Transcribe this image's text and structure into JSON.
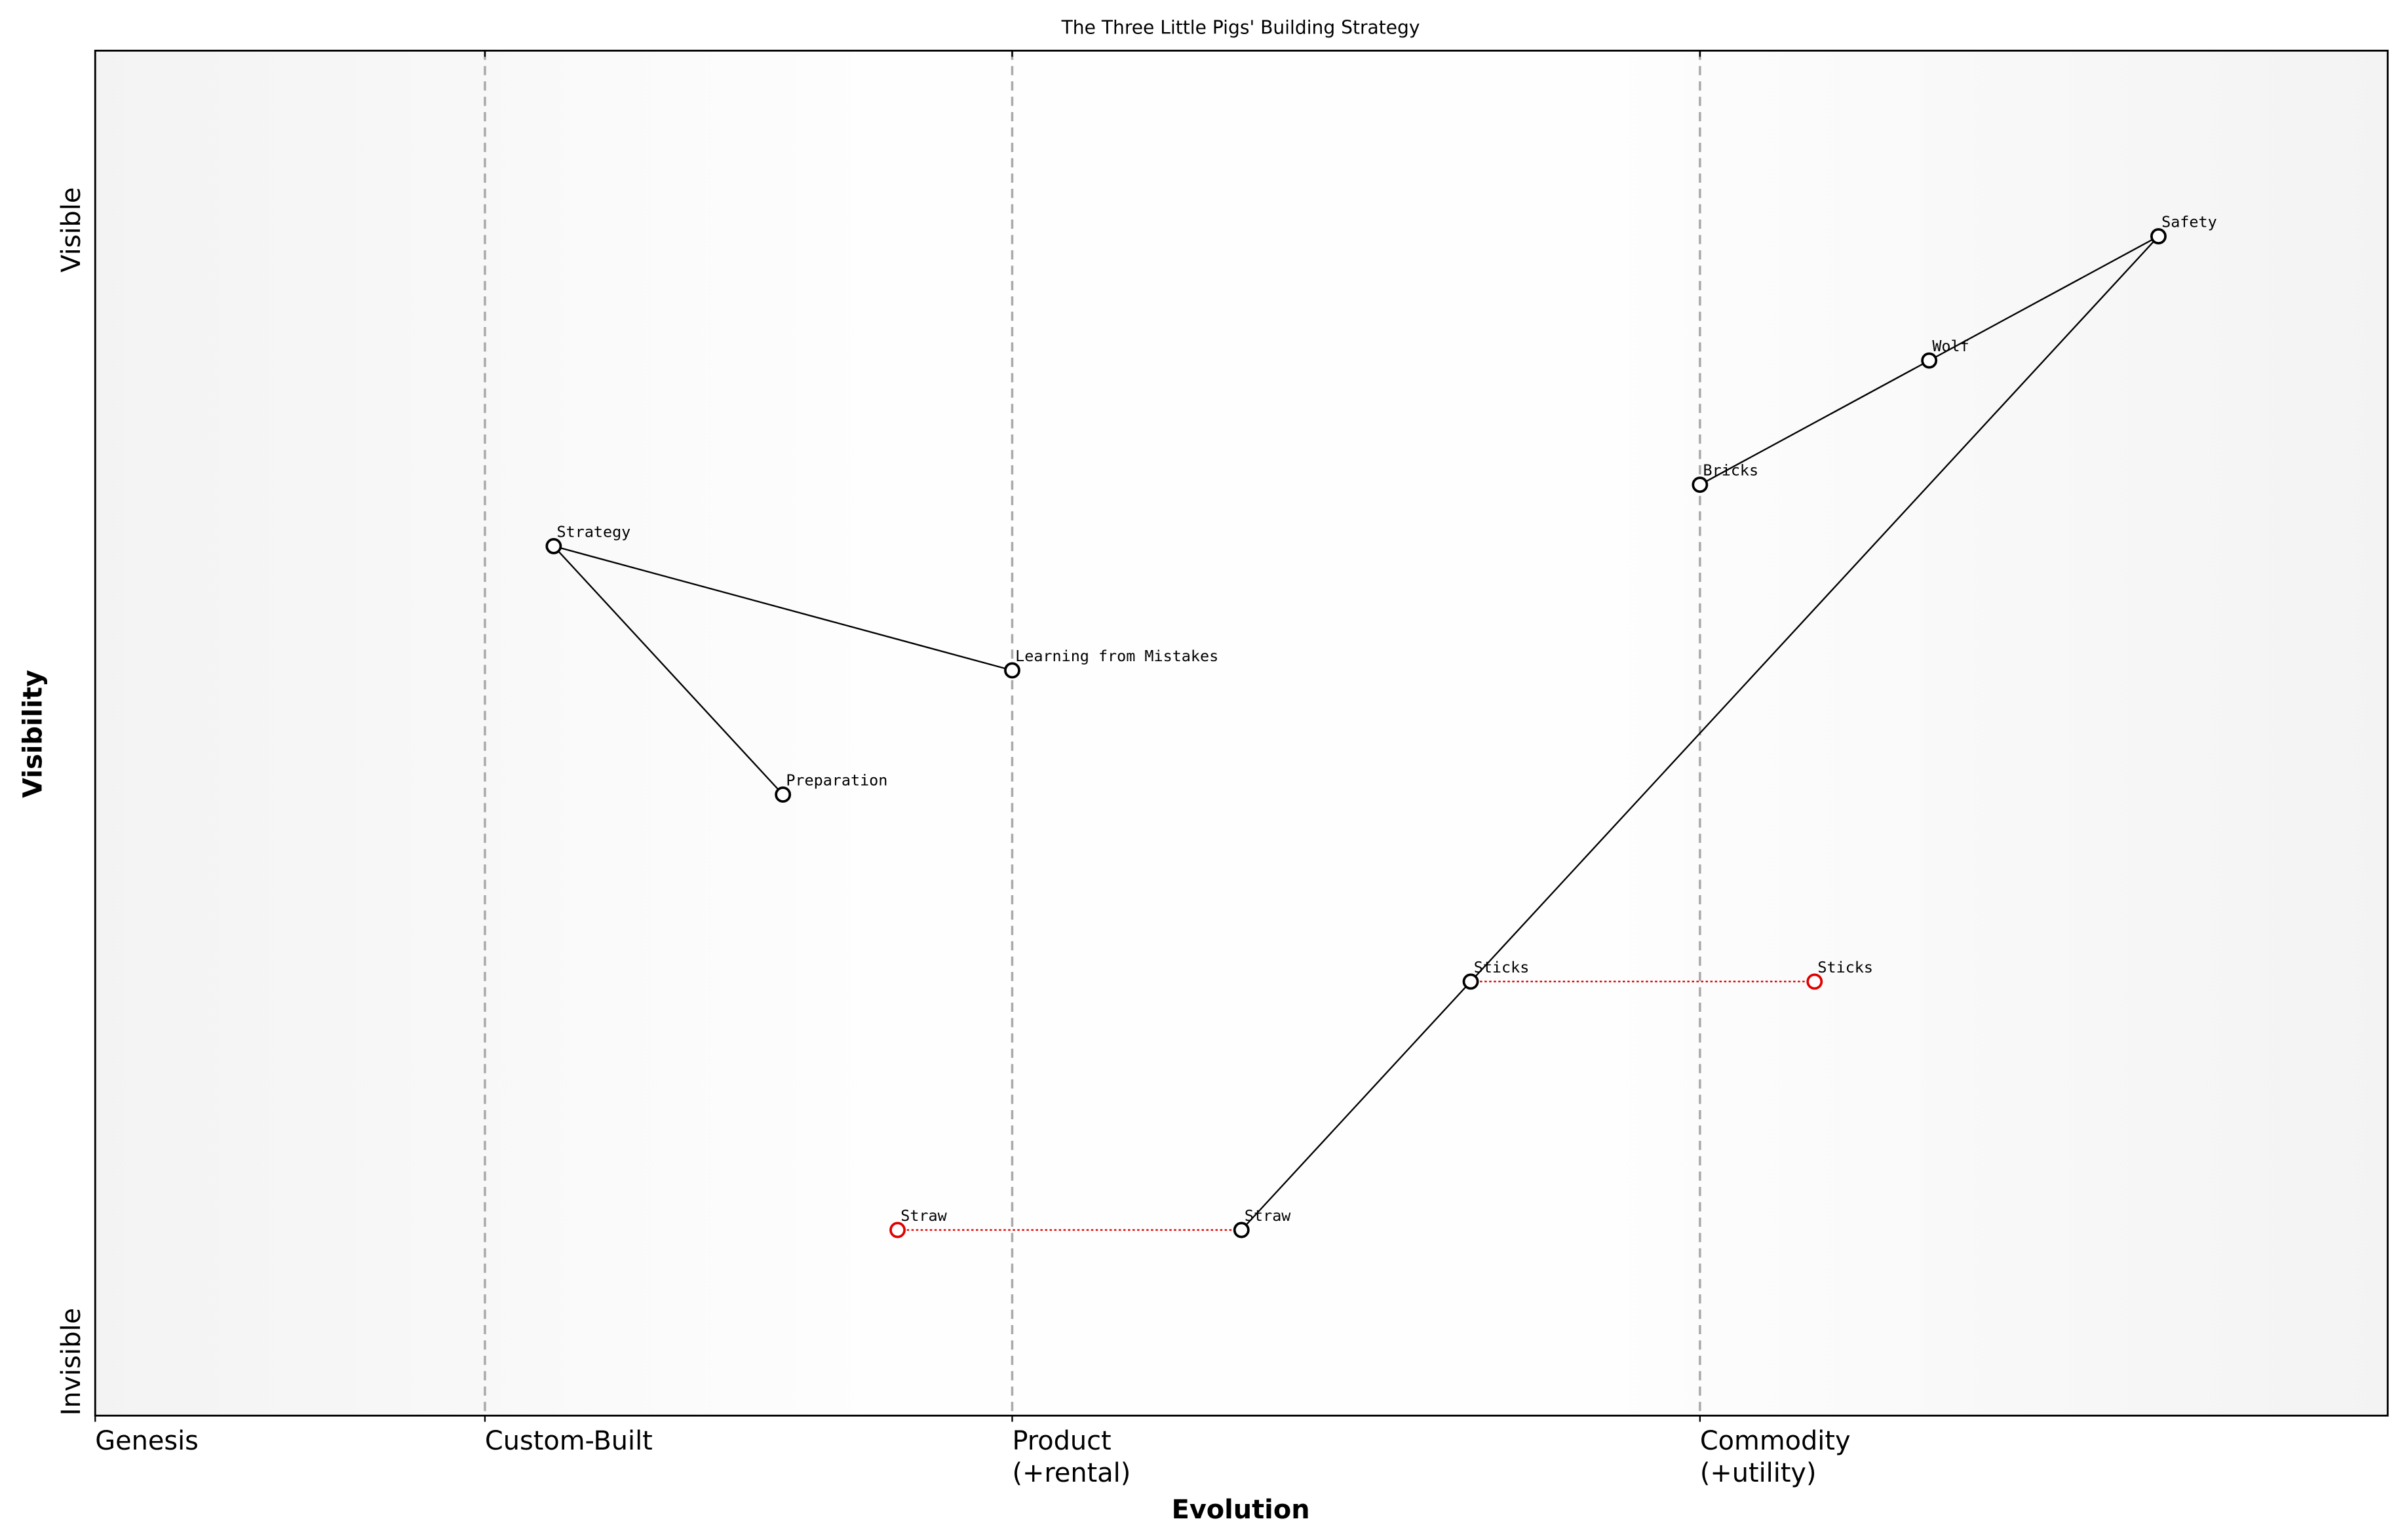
{
  "chart_data": {
    "type": "wardley",
    "title": "The Three Little Pigs' Building Strategy",
    "xlabel": "Evolution",
    "ylabel": "Visibility",
    "xlim": [
      0,
      1
    ],
    "ylim": [
      0,
      1
    ],
    "xticks": [
      {
        "value": 0,
        "label": [
          "Genesis"
        ]
      },
      {
        "value": 0.17,
        "label": [
          "Custom-Built"
        ]
      },
      {
        "value": 0.4,
        "label": [
          "Product",
          "(+rental)"
        ]
      },
      {
        "value": 0.7,
        "label": [
          "Commodity",
          "(+utility)"
        ]
      }
    ],
    "yticks": [
      {
        "value": 0,
        "label": "Invisible"
      },
      {
        "value": 0.9,
        "label": "Visible"
      }
    ],
    "grid": true,
    "nodes": [
      {
        "name": "Safety",
        "x": 0.9,
        "y": 0.864,
        "color": "#000000"
      },
      {
        "name": "Wolf",
        "x": 0.8,
        "y": 0.773,
        "color": "#000000"
      },
      {
        "name": "Bricks",
        "x": 0.7,
        "y": 0.682,
        "color": "#000000"
      },
      {
        "name": "Strategy",
        "x": 0.2,
        "y": 0.637,
        "color": "#000000"
      },
      {
        "name": "Learning from Mistakes",
        "x": 0.4,
        "y": 0.546,
        "color": "#000000"
      },
      {
        "name": "Preparation",
        "x": 0.3,
        "y": 0.455,
        "color": "#000000"
      },
      {
        "name": "Sticks",
        "x": 0.6,
        "y": 0.318,
        "color": "#000000"
      },
      {
        "name": "Sticks",
        "x": 0.75,
        "y": 0.318,
        "color": "#e00000"
      },
      {
        "name": "Straw",
        "x": 0.5,
        "y": 0.136,
        "color": "#000000"
      },
      {
        "name": "Straw",
        "x": 0.35,
        "y": 0.136,
        "color": "#e00000"
      }
    ],
    "links": [
      {
        "from": 3,
        "to": 4,
        "color": "#000000",
        "dashed": false
      },
      {
        "from": 3,
        "to": 5,
        "color": "#000000",
        "dashed": false
      },
      {
        "from": 2,
        "to": 1,
        "color": "#000000",
        "dashed": false
      },
      {
        "from": 1,
        "to": 0,
        "color": "#000000",
        "dashed": false
      },
      {
        "from": 0,
        "to": 6,
        "color": "#000000",
        "dashed": false
      },
      {
        "from": 6,
        "to": 8,
        "color": "#000000",
        "dashed": false
      },
      {
        "from": 9,
        "to": 8,
        "color": "#e00000",
        "dashed": true
      },
      {
        "from": 6,
        "to": 7,
        "color": "#e00000",
        "dashed": true
      }
    ]
  }
}
